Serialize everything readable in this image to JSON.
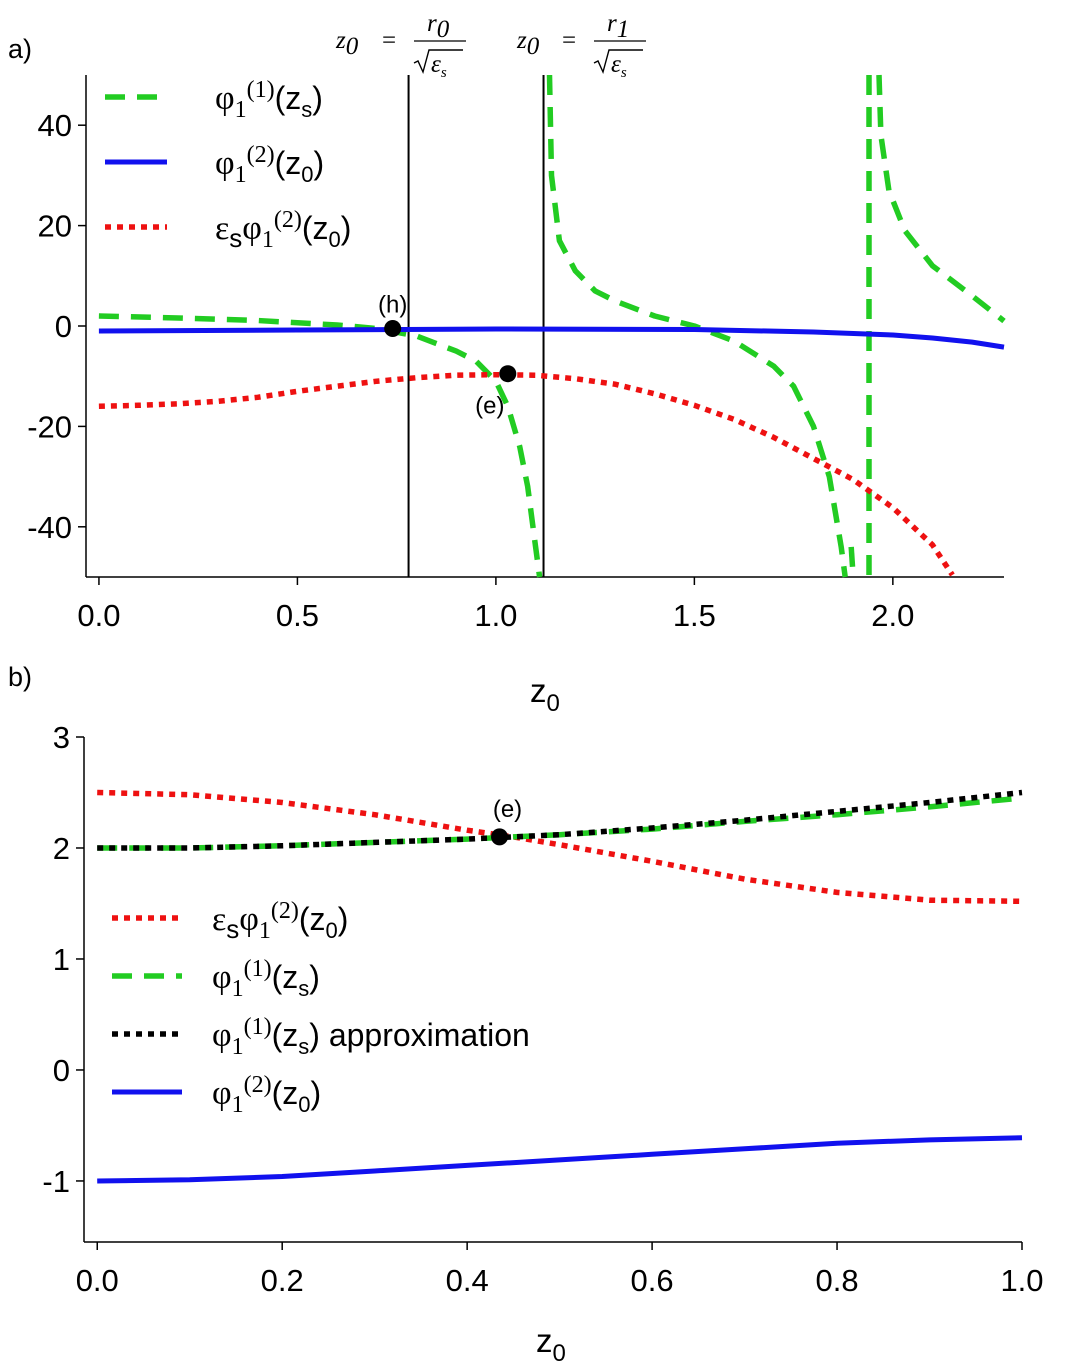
{
  "colors": {
    "green": "#22cc22",
    "blue": "#1111ee",
    "red": "#ee1111",
    "black": "#000000"
  },
  "annot_top": {
    "r0": {
      "z0": "z",
      "sub0": "0",
      "eq": "=",
      "num": "r",
      "numsub": "0",
      "eps": "ε",
      "epssub": "s"
    },
    "r1": {
      "z0": "z",
      "sub0": "0",
      "eq": "=",
      "num": "r",
      "numsub": "1",
      "eps": "ε",
      "epssub": "s"
    }
  },
  "chart_data": [
    {
      "panel_label": "a)",
      "type": "line",
      "xlabel": {
        "main": "z",
        "sub": "0"
      },
      "xlim": [
        -0.02,
        2.28
      ],
      "ylim": [
        -50,
        50
      ],
      "xticks": [
        0.0,
        0.5,
        1.0,
        1.5,
        2.0
      ],
      "xtick_labels": [
        "0.0",
        "0.5",
        "1.0",
        "1.5",
        "2.0"
      ],
      "yticks": [
        40,
        20,
        0,
        -20,
        -40
      ],
      "ytick_labels": [
        "40",
        "20",
        "0",
        "-20",
        "-40"
      ],
      "vlines": [
        0.78,
        1.12
      ],
      "legend_position": "top-left",
      "legend": [
        {
          "series": "green",
          "base": "φ",
          "sub1": "1",
          "sup": "(1)",
          "arg": "(z",
          "argsub": "s",
          "close": ")"
        },
        {
          "series": "blue",
          "base": "φ",
          "sub1": "1",
          "sup": "(2)",
          "arg": "(z",
          "argsub": "0",
          "close": ")"
        },
        {
          "series": "red",
          "pre": "ε",
          "presub": "s",
          "base": "φ",
          "sub1": "1",
          "sup": "(2)",
          "arg": "(z",
          "argsub": "0",
          "close": ")"
        }
      ],
      "series": [
        {
          "name": "phi1_1_zs",
          "color": "green",
          "style": "dashed",
          "segments": [
            {
              "x": [
                0.0,
                0.2,
                0.4,
                0.6,
                0.7,
                0.8,
                0.85,
                0.9,
                0.95,
                1.0,
                1.03,
                1.06,
                1.08,
                1.1,
                1.11
              ],
              "y": [
                2,
                1.6,
                1.1,
                0.2,
                -0.5,
                -2,
                -3.5,
                -5,
                -7,
                -11,
                -16,
                -24,
                -32,
                -44,
                -50
              ]
            },
            {
              "x": [
                1.135,
                1.14,
                1.16,
                1.2,
                1.25,
                1.3,
                1.4,
                1.5,
                1.6,
                1.7,
                1.75,
                1.8,
                1.84,
                1.87,
                1.88
              ],
              "y": [
                50,
                30,
                17,
                11,
                7,
                5,
                2,
                0,
                -3,
                -8,
                -12,
                -20,
                -30,
                -44,
                -50
              ]
            },
            {
              "x": [
                1.895,
                1.9
              ],
              "y": [
                -44,
                -50
              ]
            },
            {
              "x": [
                1.94,
                1.94
              ],
              "y": [
                50,
                -50
              ]
            },
            {
              "x": [
                1.965,
                1.97,
                1.99,
                2.03,
                2.1,
                2.2,
                2.28
              ],
              "y": [
                50,
                38,
                27,
                19,
                12,
                6,
                1
              ]
            }
          ]
        },
        {
          "name": "phi1_2_z0",
          "color": "blue",
          "style": "solid",
          "segments": [
            {
              "x": [
                0.0,
                0.5,
                1.0,
                1.5,
                1.8,
                2.0,
                2.1,
                2.2,
                2.28
              ],
              "y": [
                -1,
                -0.8,
                -0.6,
                -0.7,
                -1.2,
                -1.8,
                -2.4,
                -3.2,
                -4.2
              ]
            }
          ]
        },
        {
          "name": "eps_phi1_2_z0",
          "color": "red",
          "style": "dotted",
          "segments": [
            {
              "x": [
                0.0,
                0.1,
                0.2,
                0.3,
                0.4,
                0.5,
                0.6,
                0.7,
                0.8,
                0.9,
                1.0,
                1.1,
                1.2,
                1.3,
                1.4,
                1.5,
                1.6,
                1.7,
                1.8,
                1.9,
                2.0,
                2.1,
                2.15
              ],
              "y": [
                -16,
                -15.8,
                -15.5,
                -15,
                -14.2,
                -13,
                -12,
                -11,
                -10.3,
                -9.8,
                -9.7,
                -9.8,
                -10.5,
                -11.6,
                -13.5,
                -15.8,
                -18.6,
                -22.2,
                -26.4,
                -30.6,
                -36.2,
                -43.6,
                -49.6
              ]
            }
          ]
        }
      ],
      "points": [
        {
          "label": "(h)",
          "x": 0.74,
          "y": -0.5,
          "label_pos": "above"
        },
        {
          "label": "(e)",
          "x": 1.03,
          "y": -9.5,
          "label_pos": "below-left"
        }
      ]
    },
    {
      "panel_label": "b)",
      "type": "line",
      "xlabel": {
        "main": "z",
        "sub": "0"
      },
      "xlim": [
        -0.01,
        1.0
      ],
      "ylim": [
        -1.55,
        3.0
      ],
      "xticks": [
        0.0,
        0.2,
        0.4,
        0.6,
        0.8,
        1.0
      ],
      "xtick_labels": [
        "0.0",
        "0.2",
        "0.4",
        "0.6",
        "0.8",
        "1.0"
      ],
      "yticks": [
        3,
        2,
        1,
        0,
        -1
      ],
      "ytick_labels": [
        "3",
        "2",
        "1",
        "0",
        "-1"
      ],
      "legend_position": "center-left",
      "legend": [
        {
          "series": "red",
          "pre": "ε",
          "presub": "s",
          "base": "φ",
          "sub1": "1",
          "sup": "(2)",
          "arg": "(z",
          "argsub": "0",
          "close": ")"
        },
        {
          "series": "green",
          "base": "φ",
          "sub1": "1",
          "sup": "(1)",
          "arg": "(z",
          "argsub": "s",
          "close": ")"
        },
        {
          "series": "black",
          "base": "φ",
          "sub1": "1",
          "sup": "(1)",
          "arg": "(z",
          "argsub": "s",
          "close": ") approximation"
        },
        {
          "series": "blue",
          "base": "φ",
          "sub1": "1",
          "sup": "(2)",
          "arg": "(z",
          "argsub": "0",
          "close": ")"
        }
      ],
      "series": [
        {
          "name": "eps_phi1_2_z0",
          "color": "red",
          "style": "dotted",
          "segments": [
            {
              "x": [
                0.0,
                0.1,
                0.2,
                0.3,
                0.4,
                0.45,
                0.5,
                0.6,
                0.7,
                0.8,
                0.9,
                1.0
              ],
              "y": [
                2.5,
                2.48,
                2.41,
                2.3,
                2.16,
                2.1,
                2.03,
                1.88,
                1.72,
                1.6,
                1.53,
                1.52
              ]
            }
          ]
        },
        {
          "name": "phi1_1_zs",
          "color": "green",
          "style": "dashed",
          "segments": [
            {
              "x": [
                0.0,
                0.1,
                0.2,
                0.3,
                0.4,
                0.5,
                0.6,
                0.7,
                0.8,
                0.9,
                1.0
              ],
              "y": [
                2.0,
                2.0,
                2.02,
                2.05,
                2.08,
                2.12,
                2.17,
                2.24,
                2.3,
                2.37,
                2.45
              ]
            }
          ]
        },
        {
          "name": "phi1_1_zs_approx",
          "color": "black",
          "style": "dotted",
          "segments": [
            {
              "x": [
                0.0,
                0.1,
                0.2,
                0.3,
                0.4,
                0.5,
                0.6,
                0.7,
                0.8,
                0.9,
                1.0
              ],
              "y": [
                2.0,
                2.0,
                2.02,
                2.05,
                2.08,
                2.12,
                2.18,
                2.25,
                2.33,
                2.41,
                2.5
              ]
            }
          ]
        },
        {
          "name": "phi1_2_z0",
          "color": "blue",
          "style": "solid",
          "segments": [
            {
              "x": [
                0.0,
                0.1,
                0.2,
                0.3,
                0.4,
                0.5,
                0.6,
                0.7,
                0.8,
                0.9,
                1.0
              ],
              "y": [
                -1.0,
                -0.99,
                -0.96,
                -0.91,
                -0.86,
                -0.81,
                -0.76,
                -0.71,
                -0.66,
                -0.63,
                -0.61
              ]
            }
          ]
        }
      ],
      "points": [
        {
          "label": "(e)",
          "x": 0.435,
          "y": 2.1,
          "label_pos": "above"
        }
      ]
    }
  ]
}
